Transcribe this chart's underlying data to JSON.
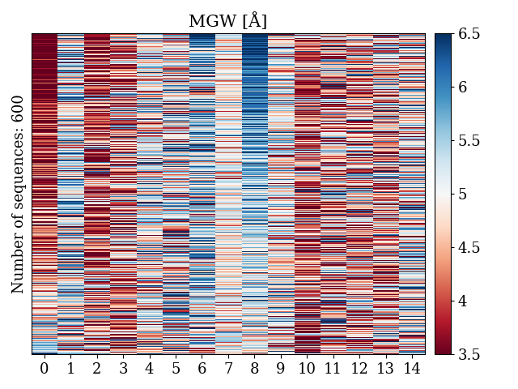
{
  "title": "MGW [Å]",
  "ylabel": "Number of sequences: 600",
  "n_rows": 600,
  "n_cols": 15,
  "x_ticks": [
    0,
    1,
    2,
    3,
    4,
    5,
    6,
    7,
    8,
    9,
    10,
    11,
    12,
    13,
    14
  ],
  "vmin": 3.5,
  "vmax": 6.5,
  "colorbar_ticks": [
    3.5,
    4.0,
    4.5,
    5.0,
    5.5,
    6.0,
    6.5
  ],
  "colorbar_ticklabels": [
    "3.5",
    "4",
    "4.5",
    "5",
    "5.5",
    "6",
    "6.5"
  ],
  "cmap": "RdBu",
  "title_fontsize": 15,
  "label_fontsize": 13,
  "tick_fontsize": 13,
  "colorbar_fontsize": 13,
  "font_family": "DejaVu Serif",
  "col_patterns": [
    {
      "mean": 4.0,
      "std": 1.0
    },
    {
      "mean": 5.2,
      "std": 0.9
    },
    {
      "mean": 4.0,
      "std": 1.0
    },
    {
      "mean": 4.3,
      "std": 1.0
    },
    {
      "mean": 5.0,
      "std": 0.8
    },
    {
      "mean": 5.0,
      "std": 0.9
    },
    {
      "mean": 5.5,
      "std": 0.9
    },
    {
      "mean": 5.0,
      "std": 0.5
    },
    {
      "mean": 5.7,
      "std": 0.7
    },
    {
      "mean": 5.0,
      "std": 0.7
    },
    {
      "mean": 4.2,
      "std": 1.0
    },
    {
      "mean": 4.5,
      "std": 1.0
    },
    {
      "mean": 4.5,
      "std": 0.9
    },
    {
      "mean": 4.5,
      "std": 1.0
    },
    {
      "mean": 5.0,
      "std": 0.9
    }
  ],
  "random_seed": 42
}
